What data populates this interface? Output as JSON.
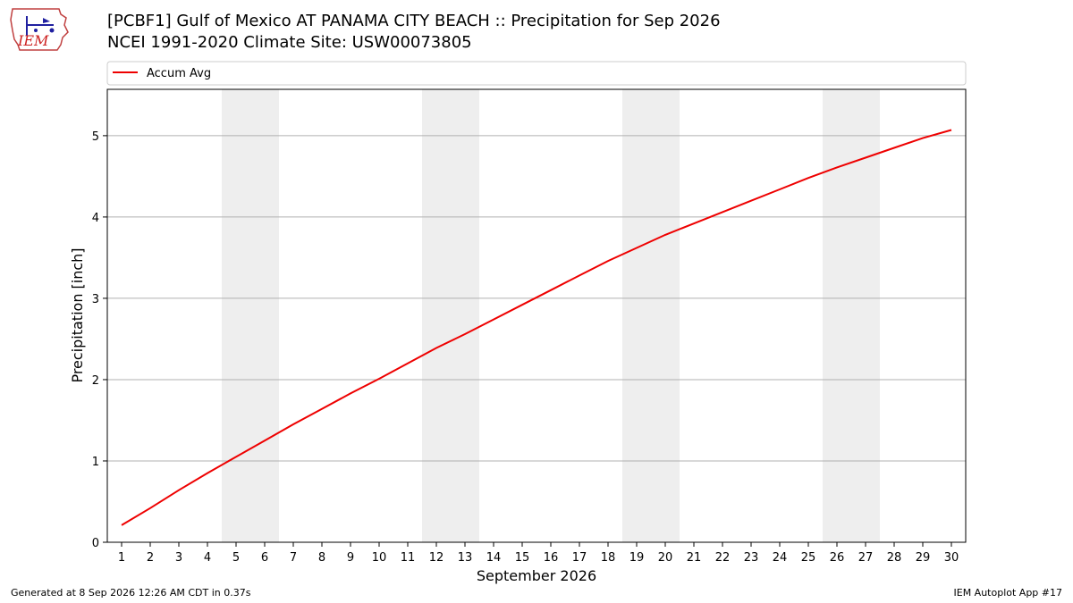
{
  "header": {
    "logo_text": "IEM",
    "title_line1": "[PCBF1] Gulf of Mexico  AT PANAMA CITY BEACH :: Precipitation for Sep 2026",
    "title_line2": "NCEI 1991-2020 Climate Site: USW00073805"
  },
  "footer": {
    "generated": "Generated at 8 Sep 2026 12:26 AM CDT in 0.37s",
    "app": "IEM Autoplot App #17"
  },
  "colors": {
    "series": "#ee0000",
    "weekend_band": "#eeeeee",
    "grid": "#b0b0b0"
  },
  "chart_data": {
    "type": "line",
    "xlabel": "September 2026",
    "ylabel": "Precipitation [inch]",
    "xlim": [
      0.5,
      30.5
    ],
    "ylim": [
      0,
      5.57
    ],
    "yticks": [
      0,
      1,
      2,
      3,
      4,
      5
    ],
    "x_tick_labels": [
      "1",
      "2",
      "3",
      "4",
      "5",
      "6",
      "7",
      "8",
      "9",
      "10",
      "11",
      "12",
      "13",
      "14",
      "15",
      "16",
      "17",
      "18",
      "19",
      "20",
      "21",
      "22",
      "23",
      "24",
      "25",
      "26",
      "27",
      "28",
      "29",
      "30"
    ],
    "grid": "horizontal",
    "legend_position": "top",
    "weekend_bands": [
      [
        4.5,
        6.5
      ],
      [
        11.5,
        13.5
      ],
      [
        18.5,
        20.5
      ],
      [
        25.5,
        27.5
      ]
    ],
    "series": [
      {
        "name": "Accum Avg",
        "x": [
          1,
          2,
          3,
          4,
          5,
          6,
          7,
          8,
          9,
          10,
          11,
          12,
          13,
          14,
          15,
          16,
          17,
          18,
          19,
          20,
          21,
          22,
          23,
          24,
          25,
          26,
          27,
          28,
          29,
          30
        ],
        "values": [
          0.21,
          0.42,
          0.64,
          0.85,
          1.05,
          1.25,
          1.45,
          1.64,
          1.83,
          2.01,
          2.2,
          2.39,
          2.56,
          2.74,
          2.92,
          3.1,
          3.28,
          3.46,
          3.62,
          3.78,
          3.92,
          4.06,
          4.2,
          4.34,
          4.48,
          4.61,
          4.73,
          4.85,
          4.97,
          5.07
        ]
      }
    ]
  }
}
